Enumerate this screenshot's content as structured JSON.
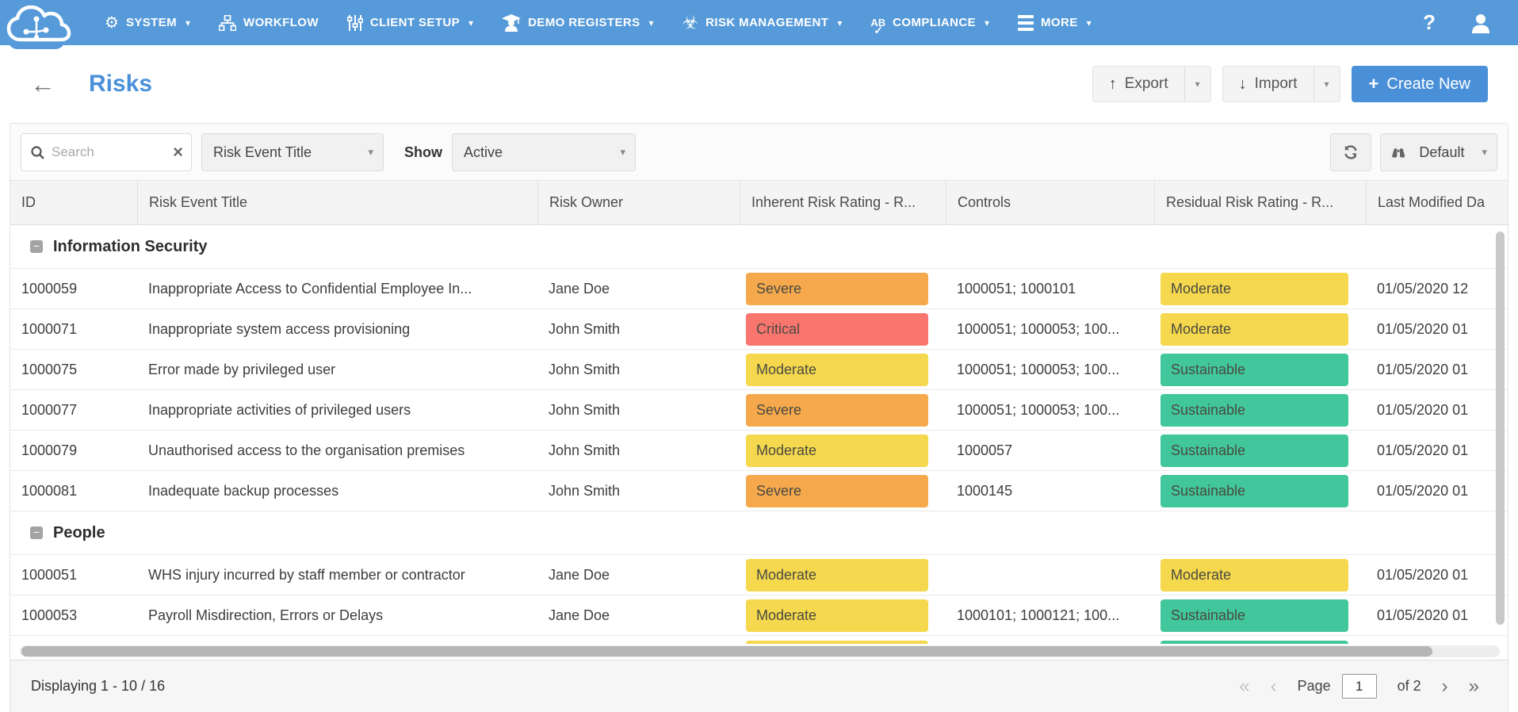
{
  "nav": {
    "items": [
      {
        "label": "SYSTEM",
        "icon": "gear-icon",
        "caret": true
      },
      {
        "label": "WORKFLOW",
        "icon": "sitemap-icon",
        "caret": false
      },
      {
        "label": "CLIENT SETUP",
        "icon": "sliders-icon",
        "caret": true
      },
      {
        "label": "DEMO REGISTERS",
        "icon": "graduate-icon",
        "caret": true
      },
      {
        "label": "RISK MANAGEMENT",
        "icon": "biohazard-icon",
        "caret": true
      },
      {
        "label": "COMPLIANCE",
        "icon": "spellcheck-icon",
        "caret": true
      },
      {
        "label": "MORE",
        "icon": "hamburger-icon",
        "caret": true
      }
    ]
  },
  "icons": {
    "system_glyph": "⚙",
    "biohazard_glyph": "☣",
    "compliance_glyph": "AB",
    "compliance_check": "✓",
    "help_glyph": "?",
    "back_glyph": "←",
    "export_glyph": "↑",
    "import_glyph": "↓",
    "plus_glyph": "+",
    "caret_glyph": "▾",
    "clear_glyph": "×",
    "collapse_glyph": "−",
    "pag_first": "«",
    "pag_prev": "‹",
    "pag_next": "›",
    "pag_last": "»"
  },
  "header": {
    "title": "Risks",
    "export_label": "Export",
    "import_label": "Import",
    "create_label": "Create New"
  },
  "filters": {
    "search_placeholder": "Search",
    "search_value": "",
    "column_filter_value": "Risk Event Title",
    "show_label": "Show",
    "show_value": "Active",
    "view_value": "Default"
  },
  "table": {
    "columns": [
      "ID",
      "Risk Event Title",
      "Risk Owner",
      "Inherent Risk Rating - R...",
      "Controls",
      "Residual Risk Rating - R...",
      "Last Modified Da"
    ],
    "groups": [
      {
        "name": "Information Security",
        "rows": [
          {
            "id": "1000059",
            "title": "Inappropriate Access to Confidential Employee In...",
            "owner": "Jane Doe",
            "inherent": "Severe",
            "controls": "1000051; 1000101",
            "residual": "Moderate",
            "modified": "01/05/2020 12"
          },
          {
            "id": "1000071",
            "title": "Inappropriate system access provisioning",
            "owner": "John Smith",
            "inherent": "Critical",
            "controls": "1000051; 1000053; 100...",
            "residual": "Moderate",
            "modified": "01/05/2020 01"
          },
          {
            "id": "1000075",
            "title": "Error made by privileged user",
            "owner": "John Smith",
            "inherent": "Moderate",
            "controls": "1000051; 1000053; 100...",
            "residual": "Sustainable",
            "modified": "01/05/2020 01"
          },
          {
            "id": "1000077",
            "title": "Inappropriate activities of privileged users",
            "owner": "John Smith",
            "inherent": "Severe",
            "controls": "1000051; 1000053; 100...",
            "residual": "Sustainable",
            "modified": "01/05/2020 01"
          },
          {
            "id": "1000079",
            "title": "Unauthorised access to the organisation premises",
            "owner": "John Smith",
            "inherent": "Moderate",
            "controls": "1000057",
            "residual": "Sustainable",
            "modified": "01/05/2020 01"
          },
          {
            "id": "1000081",
            "title": "Inadequate backup processes",
            "owner": "John Smith",
            "inherent": "Severe",
            "controls": "1000145",
            "residual": "Sustainable",
            "modified": "01/05/2020 01"
          }
        ]
      },
      {
        "name": "People",
        "rows": [
          {
            "id": "1000051",
            "title": "WHS injury incurred by staff member or contractor",
            "owner": "Jane Doe",
            "inherent": "Moderate",
            "controls": "",
            "residual": "Moderate",
            "modified": "01/05/2020 01"
          },
          {
            "id": "1000053",
            "title": "Payroll Misdirection, Errors or Delays",
            "owner": "Jane Doe",
            "inherent": "Moderate",
            "controls": "1000101; 1000121; 100...",
            "residual": "Sustainable",
            "modified": "01/05/2020 01"
          }
        ]
      }
    ],
    "partial_row": {
      "id": "",
      "title": "",
      "owner": "",
      "inherent": "Moderate",
      "controls": "",
      "residual": "Sustainable",
      "modified": ""
    }
  },
  "footer": {
    "displaying": "Displaying 1 - 10 / 16",
    "page_label": "Page",
    "page_value": "1",
    "of_label": "of 2"
  },
  "colors": {
    "nav_bg": "#569ad9",
    "accent": "#4a90d9",
    "ratings": {
      "Critical": "#f8766e",
      "Severe": "#f5a94c",
      "Moderate": "#f5d84d",
      "Sustainable": "#41c79b"
    }
  }
}
